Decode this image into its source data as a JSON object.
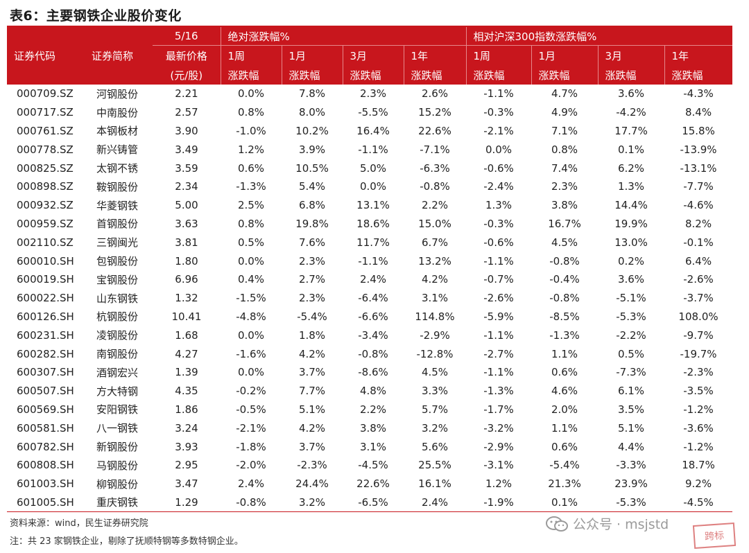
{
  "title": "表6：主要钢铁企业股价变化",
  "header": {
    "date": "5/16",
    "abs_group": "绝对涨跌幅%",
    "rel_group": "相对沪深300指数涨跌幅%",
    "code": "证券代码",
    "name": "证券简称",
    "price_line1": "最新价格",
    "price_line2": "(元/股)",
    "periods": [
      "1周",
      "1月",
      "3月",
      "1年",
      "1周",
      "1月",
      "3月",
      "1年"
    ],
    "change": "涨跌幅"
  },
  "rows": [
    {
      "code": "000709.SZ",
      "name": "河钢股份",
      "price": "2.21",
      "abs": [
        "0.0%",
        "7.8%",
        "2.3%",
        "2.6%"
      ],
      "rel": [
        "-1.1%",
        "4.7%",
        "3.6%",
        "-4.3%"
      ]
    },
    {
      "code": "000717.SZ",
      "name": "中南股份",
      "price": "2.57",
      "abs": [
        "0.8%",
        "8.0%",
        "-5.5%",
        "15.2%"
      ],
      "rel": [
        "-0.3%",
        "4.9%",
        "-4.2%",
        "8.4%"
      ]
    },
    {
      "code": "000761.SZ",
      "name": "本钢板材",
      "price": "3.90",
      "abs": [
        "-1.0%",
        "10.2%",
        "16.4%",
        "22.6%"
      ],
      "rel": [
        "-2.1%",
        "7.1%",
        "17.7%",
        "15.8%"
      ]
    },
    {
      "code": "000778.SZ",
      "name": "新兴铸管",
      "price": "3.49",
      "abs": [
        "1.2%",
        "3.9%",
        "-1.1%",
        "-7.1%"
      ],
      "rel": [
        "0.0%",
        "0.8%",
        "0.1%",
        "-13.9%"
      ]
    },
    {
      "code": "000825.SZ",
      "name": "太钢不锈",
      "price": "3.59",
      "abs": [
        "0.6%",
        "10.5%",
        "5.0%",
        "-6.3%"
      ],
      "rel": [
        "-0.6%",
        "7.4%",
        "6.2%",
        "-13.1%"
      ]
    },
    {
      "code": "000898.SZ",
      "name": "鞍钢股份",
      "price": "2.34",
      "abs": [
        "-1.3%",
        "5.4%",
        "0.0%",
        "-0.8%"
      ],
      "rel": [
        "-2.4%",
        "2.3%",
        "1.3%",
        "-7.7%"
      ]
    },
    {
      "code": "000932.SZ",
      "name": "华菱钢铁",
      "price": "5.00",
      "abs": [
        "2.5%",
        "6.8%",
        "13.1%",
        "2.2%"
      ],
      "rel": [
        "1.3%",
        "3.8%",
        "14.4%",
        "-4.6%"
      ]
    },
    {
      "code": "000959.SZ",
      "name": "首钢股份",
      "price": "3.63",
      "abs": [
        "0.8%",
        "19.8%",
        "18.6%",
        "15.0%"
      ],
      "rel": [
        "-0.3%",
        "16.7%",
        "19.9%",
        "8.2%"
      ]
    },
    {
      "code": "002110.SZ",
      "name": "三钢闽光",
      "price": "3.81",
      "abs": [
        "0.5%",
        "7.6%",
        "11.7%",
        "6.7%"
      ],
      "rel": [
        "-0.6%",
        "4.5%",
        "13.0%",
        "-0.1%"
      ]
    },
    {
      "code": "600010.SH",
      "name": "包钢股份",
      "price": "1.80",
      "abs": [
        "0.0%",
        "2.3%",
        "-1.1%",
        "13.2%"
      ],
      "rel": [
        "-1.1%",
        "-0.8%",
        "0.2%",
        "6.4%"
      ]
    },
    {
      "code": "600019.SH",
      "name": "宝钢股份",
      "price": "6.96",
      "abs": [
        "0.4%",
        "2.7%",
        "2.4%",
        "4.2%"
      ],
      "rel": [
        "-0.7%",
        "-0.4%",
        "3.6%",
        "-2.6%"
      ]
    },
    {
      "code": "600022.SH",
      "name": "山东钢铁",
      "price": "1.32",
      "abs": [
        "-1.5%",
        "2.3%",
        "-6.4%",
        "3.1%"
      ],
      "rel": [
        "-2.6%",
        "-0.8%",
        "-5.1%",
        "-3.7%"
      ]
    },
    {
      "code": "600126.SH",
      "name": "杭钢股份",
      "price": "10.41",
      "abs": [
        "-4.8%",
        "-5.4%",
        "-6.6%",
        "114.8%"
      ],
      "rel": [
        "-5.9%",
        "-8.5%",
        "-5.3%",
        "108.0%"
      ]
    },
    {
      "code": "600231.SH",
      "name": "凌钢股份",
      "price": "1.68",
      "abs": [
        "0.0%",
        "1.8%",
        "-3.4%",
        "-2.9%"
      ],
      "rel": [
        "-1.1%",
        "-1.3%",
        "-2.2%",
        "-9.7%"
      ]
    },
    {
      "code": "600282.SH",
      "name": "南钢股份",
      "price": "4.27",
      "abs": [
        "-1.6%",
        "4.2%",
        "-0.8%",
        "-12.8%"
      ],
      "rel": [
        "-2.7%",
        "1.1%",
        "0.5%",
        "-19.7%"
      ]
    },
    {
      "code": "600307.SH",
      "name": "酒钢宏兴",
      "price": "1.39",
      "abs": [
        "0.0%",
        "3.7%",
        "-8.6%",
        "4.5%"
      ],
      "rel": [
        "-1.1%",
        "0.6%",
        "-7.3%",
        "-2.3%"
      ]
    },
    {
      "code": "600507.SH",
      "name": "方大特钢",
      "price": "4.35",
      "abs": [
        "-0.2%",
        "7.7%",
        "4.8%",
        "3.3%"
      ],
      "rel": [
        "-1.3%",
        "4.6%",
        "6.1%",
        "-3.5%"
      ]
    },
    {
      "code": "600569.SH",
      "name": "安阳钢铁",
      "price": "1.86",
      "abs": [
        "-0.5%",
        "5.1%",
        "2.2%",
        "5.7%"
      ],
      "rel": [
        "-1.7%",
        "2.0%",
        "3.5%",
        "-1.2%"
      ]
    },
    {
      "code": "600581.SH",
      "name": "八一钢铁",
      "price": "3.24",
      "abs": [
        "-2.1%",
        "4.2%",
        "3.8%",
        "3.2%"
      ],
      "rel": [
        "-3.2%",
        "1.1%",
        "5.1%",
        "-3.6%"
      ]
    },
    {
      "code": "600782.SH",
      "name": "新钢股份",
      "price": "3.93",
      "abs": [
        "-1.8%",
        "3.7%",
        "3.1%",
        "5.6%"
      ],
      "rel": [
        "-2.9%",
        "0.6%",
        "4.4%",
        "-1.2%"
      ]
    },
    {
      "code": "600808.SH",
      "name": "马钢股份",
      "price": "2.95",
      "abs": [
        "-2.0%",
        "-2.3%",
        "-4.5%",
        "25.5%"
      ],
      "rel": [
        "-3.1%",
        "-5.4%",
        "-3.3%",
        "18.7%"
      ]
    },
    {
      "code": "601003.SH",
      "name": "柳钢股份",
      "price": "3.47",
      "abs": [
        "2.4%",
        "24.4%",
        "22.6%",
        "16.1%"
      ],
      "rel": [
        "1.2%",
        "21.3%",
        "23.9%",
        "9.2%"
      ]
    },
    {
      "code": "601005.SH",
      "name": "重庆钢铁",
      "price": "1.29",
      "abs": [
        "-0.8%",
        "3.2%",
        "-6.5%",
        "2.4%"
      ],
      "rel": [
        "-1.9%",
        "0.1%",
        "-5.3%",
        "-4.5%"
      ]
    }
  ],
  "footer": {
    "source": "资料来源：wind，民生证券研究院",
    "note": "注：共 23 家钢铁企业，剔除了抚顺特钢等多数特钢企业。",
    "watermark": "公众号 · msjstd",
    "stamp": "跨标"
  },
  "colors": {
    "header_bg": "#c8161d",
    "header_text": "#ffffff",
    "divider": "#c8161d"
  }
}
